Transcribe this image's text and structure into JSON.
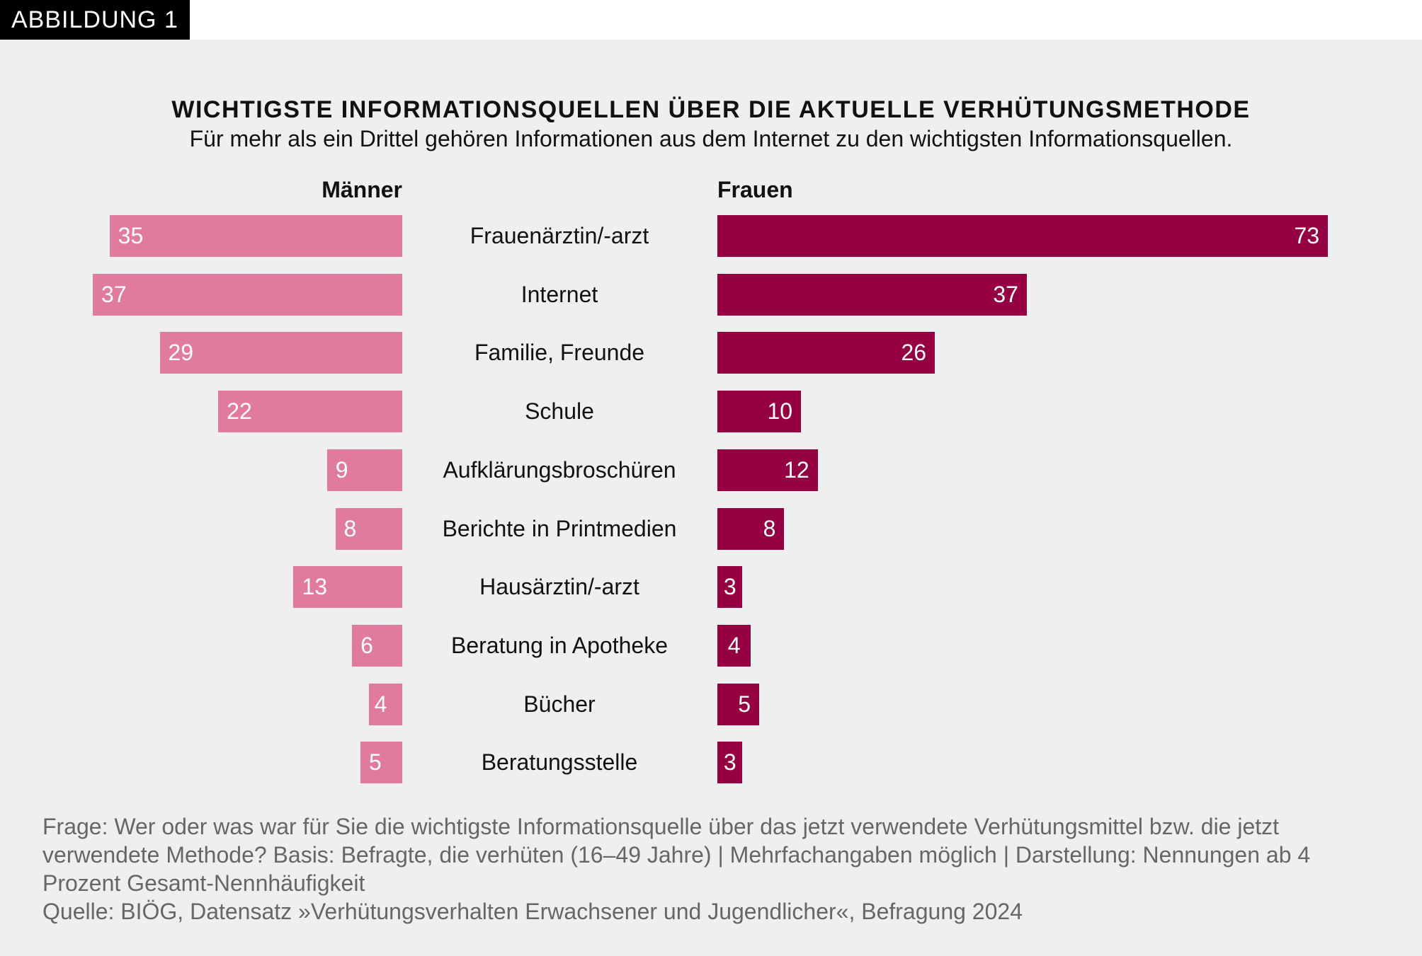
{
  "badge": "ABBILDUNG 1",
  "chart_data": {
    "type": "bar",
    "orientation": "horizontal-butterfly",
    "title": "WICHTIGSTE INFORMATIONSQUELLEN ÜBER DIE AKTUELLE VERHÜTUNGSMETHODE",
    "subtitle": "Für mehr als ein Drittel gehören Informationen aus dem Internet zu den wichtigsten Informationsquellen.",
    "categories": [
      "Frauenärztin/-arzt",
      "Internet",
      "Familie, Freunde",
      "Schule",
      "Aufklärungsbroschüren",
      "Berichte in Printmedien",
      "Hausärztin/-arzt",
      "Beratung in Apotheke",
      "Bücher",
      "Beratungsstelle"
    ],
    "series": [
      {
        "name": "Männer",
        "color": "#e07a9e",
        "values": [
          35,
          37,
          29,
          22,
          9,
          8,
          13,
          6,
          4,
          5
        ]
      },
      {
        "name": "Frauen",
        "color": "#940042",
        "values": [
          73,
          37,
          26,
          10,
          12,
          8,
          3,
          4,
          5,
          3
        ]
      }
    ],
    "grid": false
  },
  "footer": {
    "question": "Frage: Wer oder was war für Sie die wichtigste Informationsquelle über das jetzt verwendete Verhütungsmittel bzw. die jetzt verwendete Methode? Basis: Befragte, die verhüten (16–49 Jahre) | Mehrfachangaben möglich | Darstellung: Nennungen ab 4 Prozent Gesamt-Nennhäufigkeit",
    "source": "Quelle: BIÖG, Datensatz »Verhütungsverhalten Erwachsener und Jugendlicher«, Befragung 2024"
  }
}
